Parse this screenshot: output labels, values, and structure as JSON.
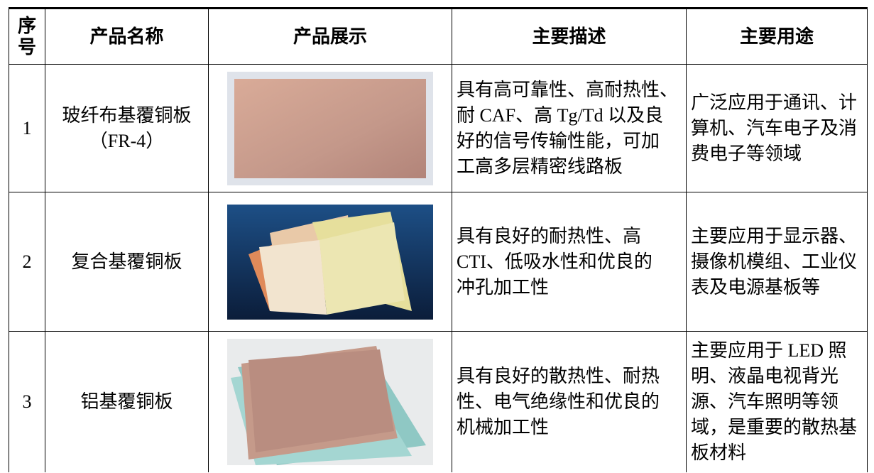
{
  "table": {
    "header": [
      "序号",
      "产品名称",
      "产品展示",
      "主要描述",
      "主要用途"
    ],
    "rows": [
      {
        "no": "1",
        "name": [
          "玻纤布基覆铜板",
          "（FR-4）"
        ],
        "description": [
          "具有高可靠性、高耐热性、",
          "耐 CAF、高 Tg/Td 以及良",
          "好的信号传输性能，可加",
          "工高多层精密线路板"
        ],
        "usage": [
          "广泛应用于通讯、计",
          "算机、汽车电子及消",
          "费电子等领域"
        ]
      },
      {
        "no": "2",
        "name": [
          "复合基覆铜板"
        ],
        "description": [
          "具有良好的耐热性、高",
          "CTI、低吸水性和优良的",
          "冲孔加工性"
        ],
        "usage": [
          "主要应用于显示器、",
          "摄像机模组、工业仪",
          "表及电源基板等"
        ]
      },
      {
        "no": "3",
        "name": [
          "铝基覆铜板"
        ],
        "description": [
          "具有良好的散热性、耐热",
          "性、电气绝缘性和优良的",
          "机械加工性"
        ],
        "usage": [
          "主要应用于 LED 照",
          "明、液晶电视背光",
          "源、汽车照明等领",
          "域，是重要的散热基",
          "板材料"
        ]
      }
    ]
  }
}
